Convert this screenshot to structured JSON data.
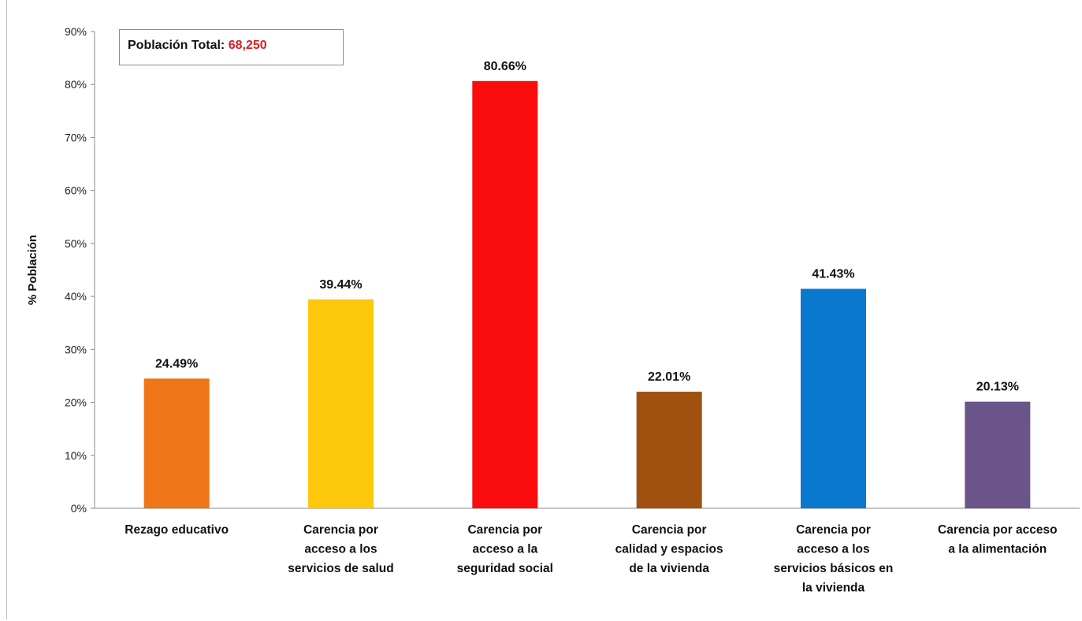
{
  "chart_data": {
    "type": "bar",
    "ylabel": "% Población",
    "ylim": [
      0,
      90
    ],
    "yticks": [
      0,
      10,
      20,
      30,
      40,
      50,
      60,
      70,
      80,
      90
    ],
    "ytick_labels": [
      "0%",
      "10%",
      "20%",
      "30%",
      "40%",
      "50%",
      "60%",
      "70%",
      "80%",
      "90%"
    ],
    "grid": false,
    "legend": "none",
    "categories": [
      [
        "Rezago educativo"
      ],
      [
        "Carencia por",
        "acceso a los",
        "servicios de salud"
      ],
      [
        "Carencia por",
        "acceso a la",
        "seguridad social"
      ],
      [
        "Carencia por",
        "calidad y espacios",
        "de la vivienda"
      ],
      [
        "Carencia por",
        "acceso a los",
        "servicios básicos en",
        "la vivienda"
      ],
      [
        "Carencia por acceso",
        "a la alimentación"
      ]
    ],
    "values": [
      24.49,
      39.44,
      80.66,
      22.01,
      41.43,
      20.13
    ],
    "value_labels": [
      "24.49%",
      "39.44%",
      "80.66%",
      "22.01%",
      "41.43%",
      "20.13%"
    ],
    "colors": [
      "#ee7518",
      "#fdc70c",
      "#fb0d0d",
      "#a0500f",
      "#0b78cf",
      "#6a5488"
    ]
  },
  "annotation": {
    "label": "Población Total:",
    "value": "68,250"
  }
}
